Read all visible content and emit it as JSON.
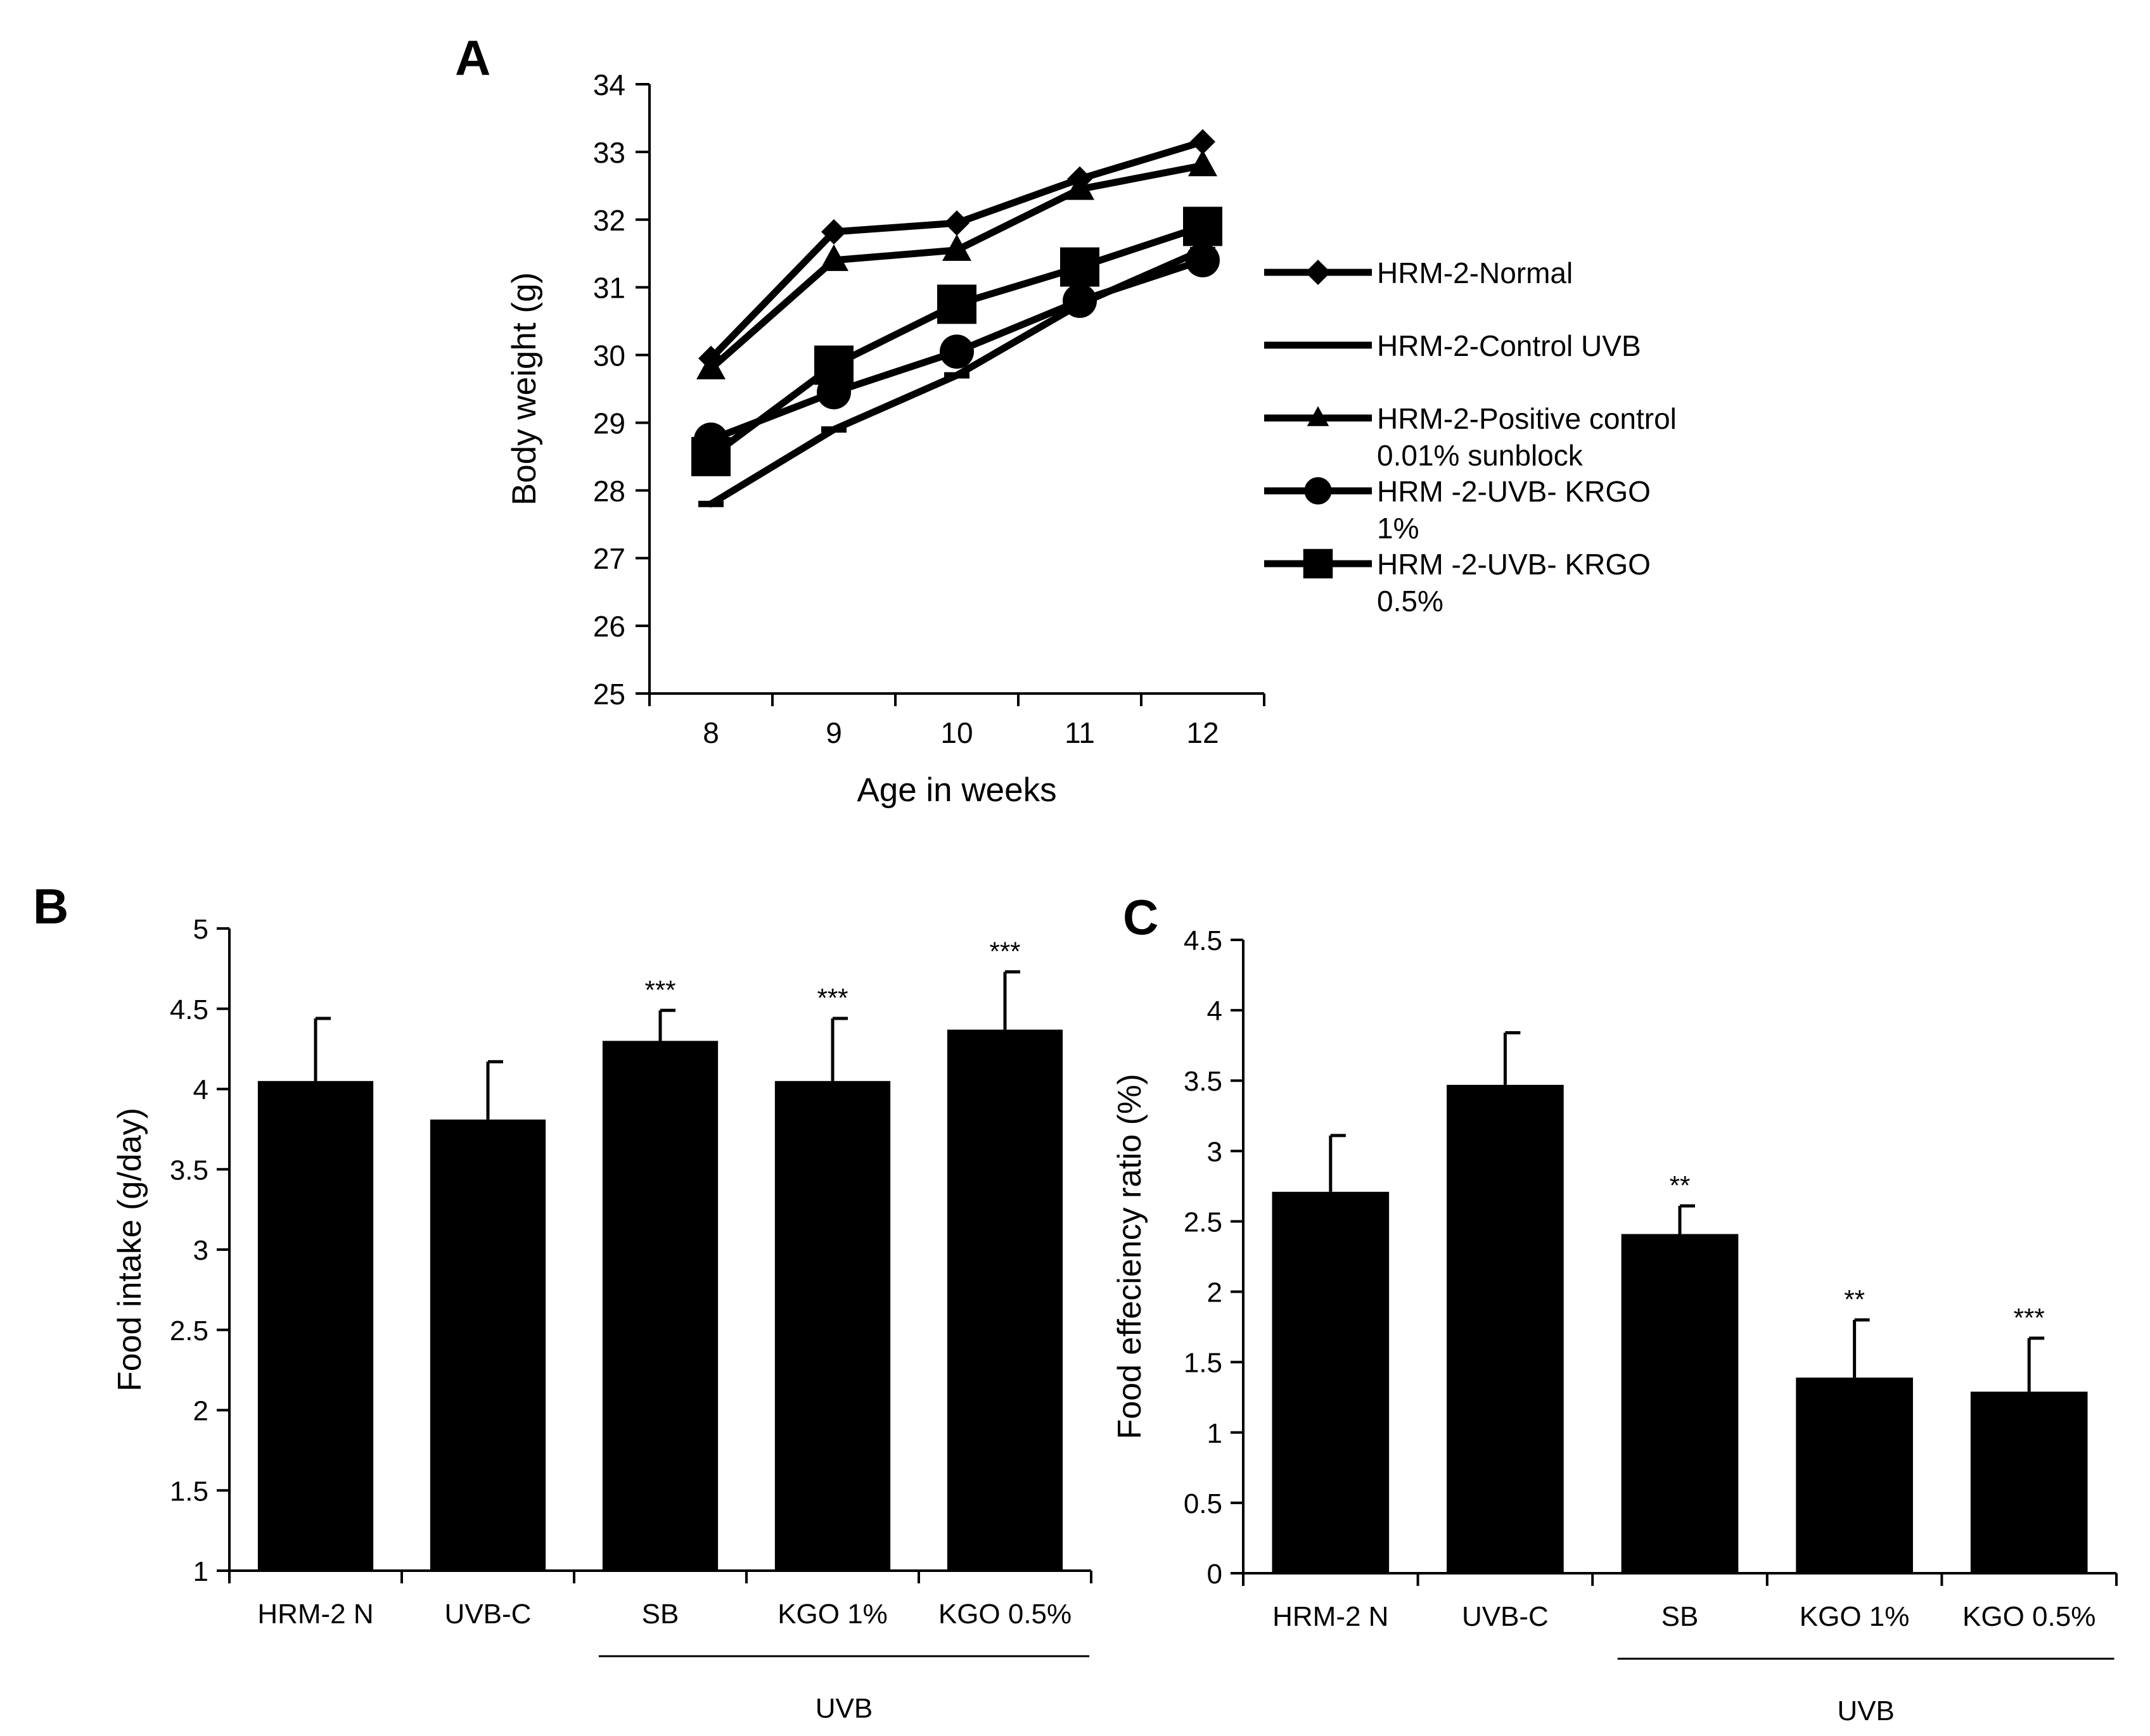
{
  "chart_data": [
    {
      "panel": "A",
      "type": "line",
      "title": "",
      "xlabel": "Age in weeks",
      "ylabel": "Body weight (g)",
      "x": [
        8,
        9,
        10,
        11,
        12
      ],
      "xticks": [
        "8",
        "9",
        "10",
        "11",
        "12"
      ],
      "ylim": [
        25,
        34
      ],
      "yticks": [
        "25",
        "26",
        "27",
        "28",
        "29",
        "30",
        "31",
        "32",
        "33",
        "34"
      ],
      "legend_position": "right",
      "series": [
        {
          "name": "HRM-2-Normal",
          "name_lines": [
            "HRM-2-Normal"
          ],
          "marker": "diamond",
          "values": [
            29.95,
            31.82,
            31.95,
            32.6,
            33.15
          ]
        },
        {
          "name": "HRM-2-Control UVB",
          "name_lines": [
            "HRM-2-Control UVB"
          ],
          "marker": "dash",
          "values": [
            27.8,
            28.9,
            29.7,
            30.75,
            31.55
          ]
        },
        {
          "name": "HRM-2-Positive control 0.01% sunblock",
          "name_lines": [
            "HRM-2-Positive control",
            "0.01% sunblock"
          ],
          "marker": "triangle",
          "values": [
            29.8,
            31.4,
            31.55,
            32.45,
            32.8
          ]
        },
        {
          "name": "HRM -2-UVB- KRGO 1%",
          "name_lines": [
            "HRM -2-UVB- KRGO",
            "1%"
          ],
          "marker": "circle",
          "values": [
            28.75,
            29.45,
            30.05,
            30.8,
            31.4
          ]
        },
        {
          "name": "HRM -2-UVB- KRGO 0.5%",
          "name_lines": [
            "HRM -2-UVB- KRGO",
            "0.5%"
          ],
          "marker": "square",
          "values": [
            28.5,
            29.85,
            30.75,
            31.3,
            31.9
          ]
        }
      ]
    },
    {
      "panel": "B",
      "type": "bar",
      "ylabel": "Food intake  (g/day)",
      "ylim": [
        1,
        5
      ],
      "yticks": [
        "1",
        "1.5",
        "2",
        "2.5",
        "3",
        "3.5",
        "4",
        "4.5",
        "5"
      ],
      "categories": [
        "HRM-2 N",
        "UVB-C",
        "SB",
        "KGO 1%",
        "KGO 0.5%"
      ],
      "values": [
        4.05,
        3.81,
        4.3,
        4.05,
        4.37
      ],
      "errors": [
        0.39,
        0.36,
        0.19,
        0.39,
        0.36
      ],
      "significance": [
        "",
        "",
        "***",
        "***",
        "***"
      ],
      "group_label": "UVB",
      "group_span": [
        2,
        4
      ]
    },
    {
      "panel": "C",
      "type": "bar",
      "ylabel": "Food effeciency ratio (%)",
      "ylim": [
        0,
        4.5
      ],
      "yticks": [
        "0",
        "0.5",
        "1",
        "1.5",
        "2",
        "2.5",
        "3",
        "3.5",
        "4",
        "4.5"
      ],
      "categories": [
        "HRM-2 N",
        "UVB-C",
        "SB",
        "KGO 1%",
        "KGO 0.5%"
      ],
      "values": [
        2.71,
        3.47,
        2.41,
        1.39,
        1.29
      ],
      "errors": [
        0.4,
        0.37,
        0.2,
        0.41,
        0.38
      ],
      "significance": [
        "",
        "",
        "**",
        "**",
        "***"
      ],
      "group_label": "UVB",
      "group_span": [
        2,
        4
      ]
    }
  ]
}
